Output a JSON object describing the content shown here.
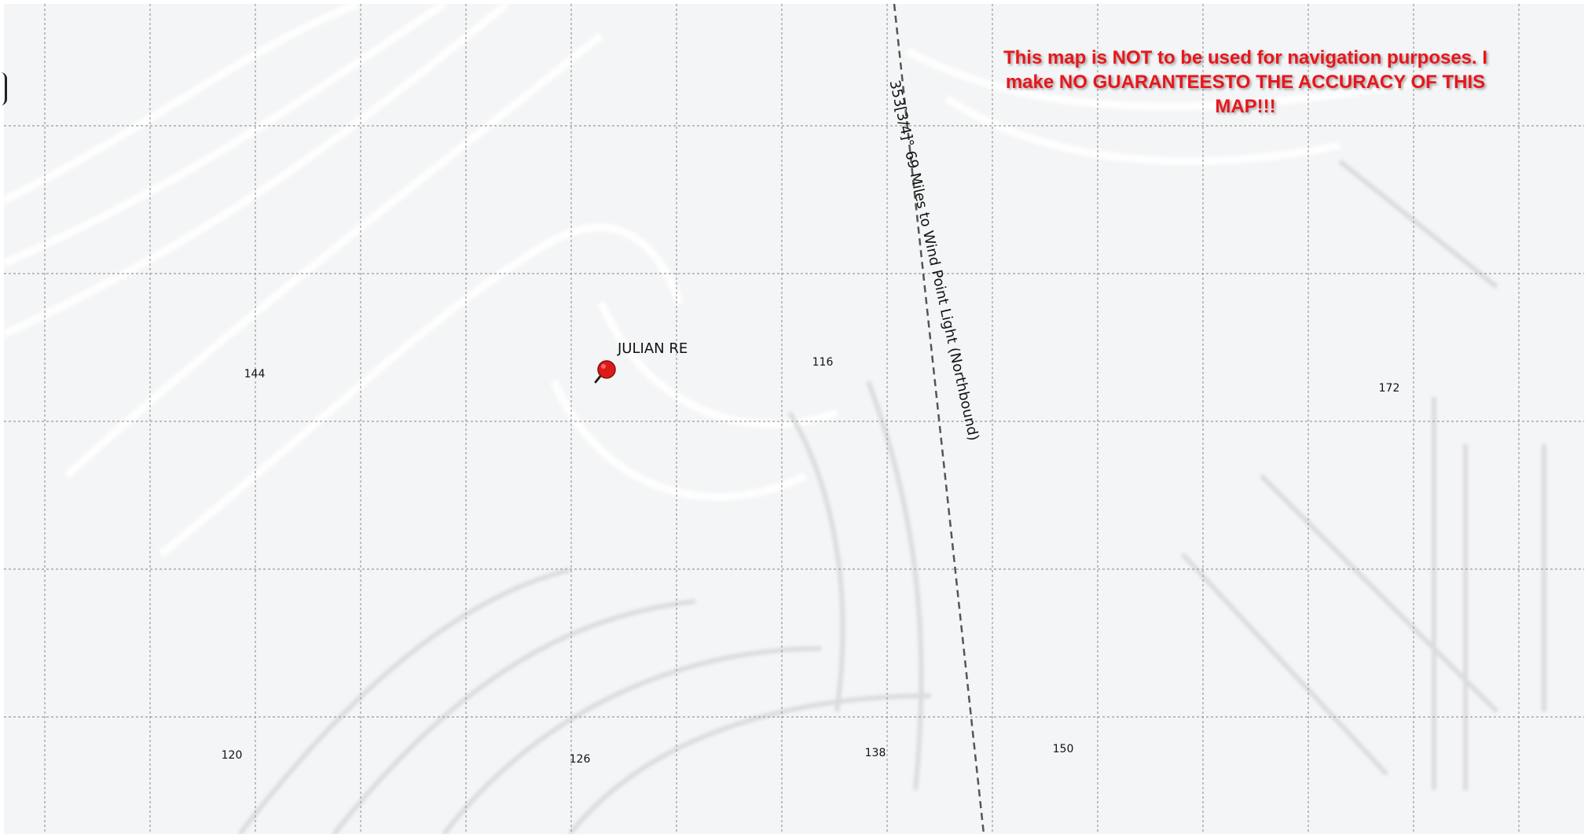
{
  "map": {
    "background_color": "#f4f5f6",
    "grid_color": "#9a9a9a",
    "route_color": "#555555",
    "marker_color": "#dd1a1a",
    "warning_color": "#e8161b"
  },
  "warning": {
    "text": "This map is NOT to be used for navigation purposes. I\nmake NO GUARANTEESTO THE ACCURACY OF THIS\nMAP!!!"
  },
  "route": {
    "label": "353[3/4]° 69 Miles to Wind Point Light (Northbound)"
  },
  "marker": {
    "label": "JULIAN RE",
    "icon": "pushpin-icon"
  },
  "depths": [
    {
      "value": "144"
    },
    {
      "value": "116"
    },
    {
      "value": "172"
    },
    {
      "value": "120"
    },
    {
      "value": "126"
    },
    {
      "value": "138"
    },
    {
      "value": "150"
    }
  ]
}
